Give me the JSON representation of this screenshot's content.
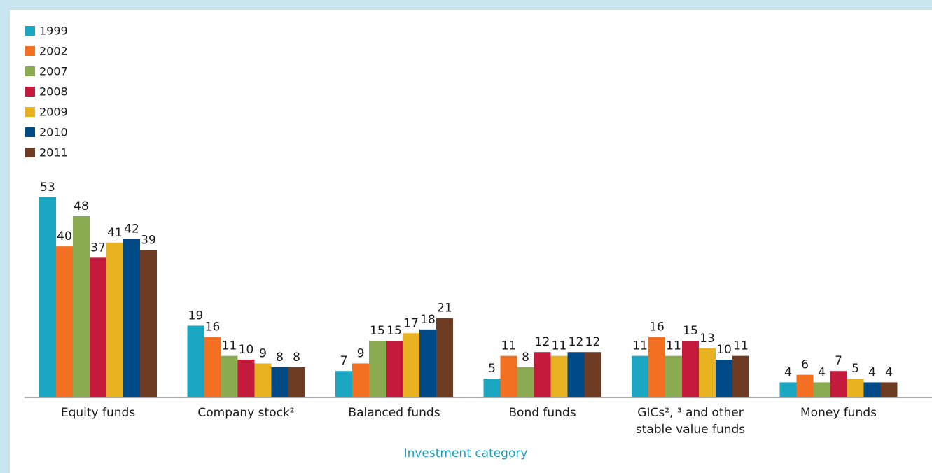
{
  "chart_data": {
    "type": "bar",
    "x_label": "Investment category",
    "categories": [
      "Equity funds",
      "Company stock²",
      "Balanced funds",
      "Bond funds",
      "GICs², ³ and other stable value funds",
      "Money funds"
    ],
    "series": [
      {
        "name": "1999",
        "color": "#1ba6c2",
        "values": [
          53,
          19,
          7,
          5,
          11,
          4
        ]
      },
      {
        "name": "2002",
        "color": "#f36f21",
        "values": [
          40,
          16,
          9,
          11,
          16,
          6
        ]
      },
      {
        "name": "2007",
        "color": "#8aab4f",
        "values": [
          48,
          11,
          15,
          8,
          11,
          4
        ]
      },
      {
        "name": "2008",
        "color": "#c41a3b",
        "values": [
          37,
          10,
          15,
          12,
          15,
          7
        ]
      },
      {
        "name": "2009",
        "color": "#e8b120",
        "values": [
          41,
          9,
          17,
          11,
          13,
          5
        ]
      },
      {
        "name": "2010",
        "color": "#004b87",
        "values": [
          42,
          8,
          18,
          12,
          10,
          4
        ]
      },
      {
        "name": "2011",
        "color": "#6e3b23",
        "values": [
          39,
          8,
          21,
          12,
          11,
          4
        ]
      }
    ],
    "legend": "top-left"
  }
}
